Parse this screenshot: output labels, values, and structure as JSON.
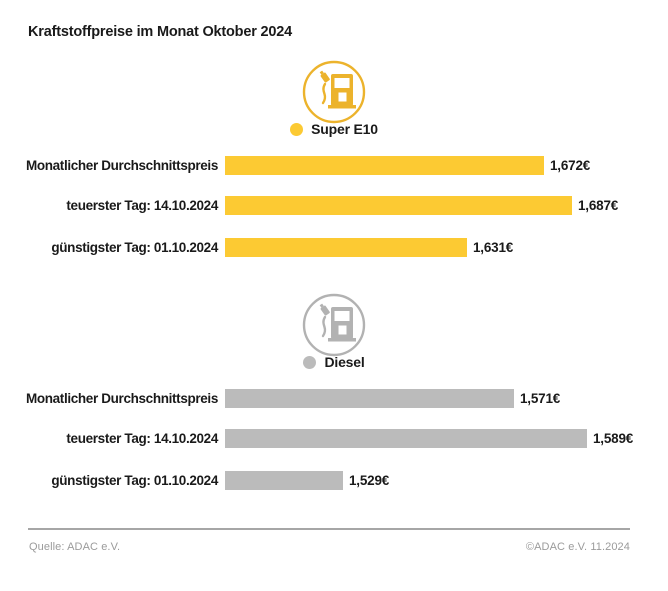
{
  "title": "Kraftstoffpreise im Monat Oktober 2024",
  "colors": {
    "super_e10": "#FCCA33",
    "super_e10_dark": "#ECB32C",
    "diesel": "#BBBBBB",
    "diesel_dark": "#B2B2B2",
    "text": "#1A1A1A",
    "footer_text": "#9B9B9B",
    "divider": "#A6A6A6"
  },
  "icons": {
    "super_pump": "fuel-pump-icon-yellow",
    "diesel_pump": "fuel-pump-icon-gray"
  },
  "chart_data": [
    {
      "type": "bar",
      "title": "Super E10",
      "orientation": "horizontal",
      "unit": "EUR",
      "color": "#FCCA33",
      "x_baseline": 1.5,
      "xlim": [
        1.5,
        1.7
      ],
      "categories": [
        "Monatlicher Durchschnittspreis",
        "teuerster Tag: 14.10.2024",
        "günstigster Tag: 01.10.2024"
      ],
      "values": [
        1.672,
        1.687,
        1.631
      ],
      "value_labels": [
        "1,672€",
        "1,687€",
        "1,631€"
      ]
    },
    {
      "type": "bar",
      "title": "Diesel",
      "orientation": "horizontal",
      "unit": "EUR",
      "color": "#BBBBBB",
      "x_baseline": 1.5,
      "xlim": [
        1.5,
        1.6
      ],
      "categories": [
        "Monatlicher Durchschnittspreis",
        "teuerster Tag: 14.10.2024",
        "günstigster Tag: 01.10.2024"
      ],
      "values": [
        1.571,
        1.589,
        1.529
      ],
      "value_labels": [
        "1,571€",
        "1,589€",
        "1,529€"
      ]
    }
  ],
  "footer": {
    "source": "Quelle: ADAC e.V.",
    "copyright": "©ADAC e.V. 11.2024"
  }
}
